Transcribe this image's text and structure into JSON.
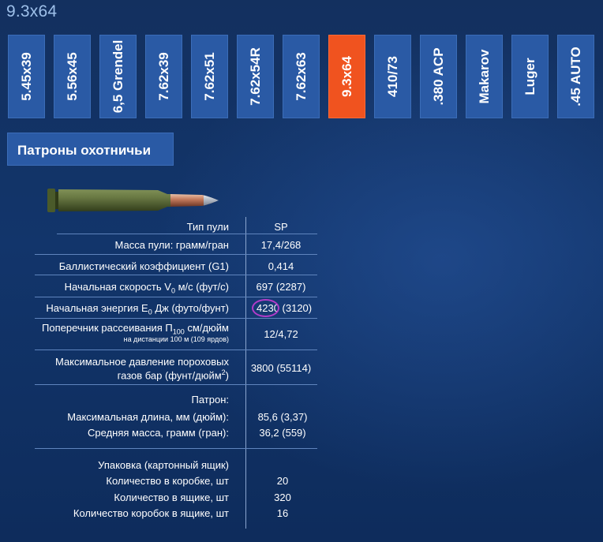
{
  "page": {
    "title": "9.3x64"
  },
  "tabs": [
    {
      "label": "5.45x39",
      "active": false
    },
    {
      "label": "5.56x45",
      "active": false
    },
    {
      "label": "6,5 Grendel",
      "active": false
    },
    {
      "label": "7.62x39",
      "active": false
    },
    {
      "label": "7.62x51",
      "active": false
    },
    {
      "label": "7.62x54R",
      "active": false
    },
    {
      "label": "7.62x63",
      "active": false
    },
    {
      "label": "9.3x64",
      "active": true
    },
    {
      "label": "410/73",
      "active": false
    },
    {
      "label": ".380 ACP",
      "active": false
    },
    {
      "label": "Makarov",
      "active": false
    },
    {
      "label": "Luger",
      "active": false
    },
    {
      "label": ".45 AUTO",
      "active": false
    }
  ],
  "section": {
    "title": "Патроны охотничьи"
  },
  "specs": {
    "bullet_type": {
      "label": "Тип пули",
      "value": "SP"
    },
    "bullet_mass": {
      "label": "Масса пули: грамм/гран",
      "value": "17,4/268"
    },
    "ballistic_coef": {
      "label": "Баллистический коэффициент (G1)",
      "value": "0,414"
    },
    "muzzle_velocity": {
      "label_pre": "Начальная скорость V",
      "label_sub": "0",
      "label_post": " м/с (фут/с)",
      "value": "697 (2287)"
    },
    "muzzle_energy": {
      "label_pre": "Начальная энергия E",
      "label_sub": "0",
      "label_post": " Дж (футо/фунт)",
      "value_main": "4230",
      "value_extra": " (3120)"
    },
    "dispersion": {
      "label_pre": "Поперечник рассеивания П",
      "label_sub": "100",
      "label_post": " см/дюйм",
      "label_line2": "на дистанции 100 м (109 ярдов)",
      "value": "12/4,72"
    },
    "max_pressure": {
      "label_line1": "Максимальное давление пороховых",
      "label_line2_pre": "газов бар (фунт/дюйм",
      "label_line2_sup": "2",
      "label_line2_post": ")",
      "value": "3800 (55114)"
    },
    "cartridge": {
      "heading": "Патрон:",
      "max_length": {
        "label": "Максимальная длина, мм (дюйм):",
        "value": "85,6 (3,37)"
      },
      "avg_mass": {
        "label": "Средняя масса, грамм (гран):",
        "value": "36,2 (559)"
      }
    },
    "packaging": {
      "heading": "Упаковка (картонный ящик)",
      "per_box": {
        "label": "Количество в коробке, шт",
        "value": "20"
      },
      "per_crate": {
        "label": "Количество в ящике, шт",
        "value": "320"
      },
      "boxes_per_crate": {
        "label": "Количество коробок в ящике, шт",
        "value": "16"
      }
    }
  },
  "colors": {
    "background": "#13305f",
    "tab": "#2a5aa5",
    "tab_active": "#f0531f",
    "highlight_circle": "#b23cc9"
  }
}
